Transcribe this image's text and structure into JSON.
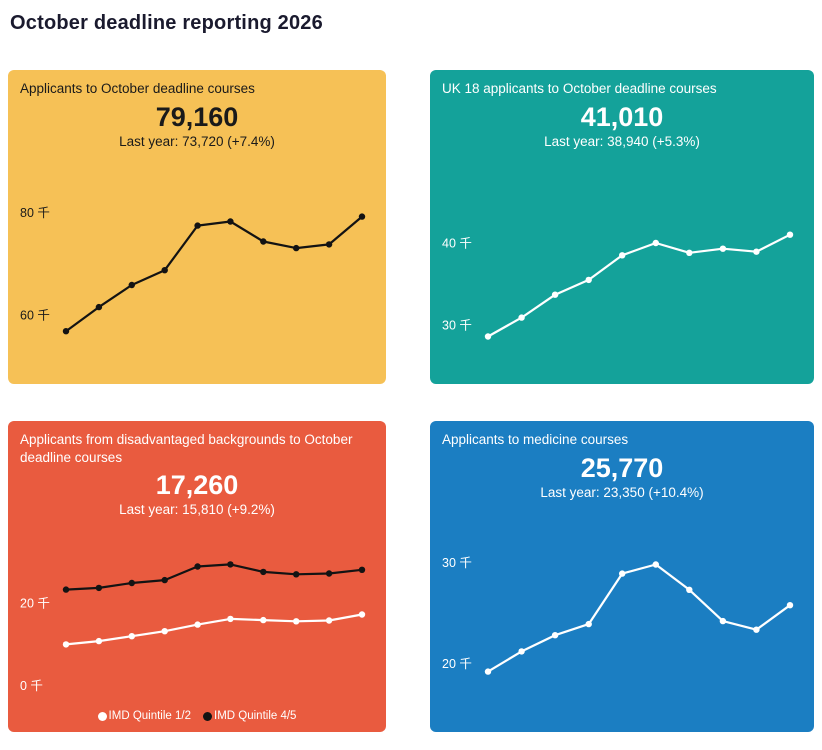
{
  "page_title": "October deadline reporting 2026",
  "cards": [
    {
      "title": "Applicants to October deadline courses",
      "headline": "79,160",
      "last_year": "Last year: 73,720 (+7.4%)",
      "bg": "#F6C156",
      "fg": "#1A1A1A"
    },
    {
      "title": "UK 18 applicants to October deadline courses",
      "headline": "41,010",
      "last_year": "Last year: 38,940 (+5.3%)",
      "bg": "#14A29A",
      "fg": "#FFFFFF"
    },
    {
      "title": "Applicants from disadvantaged backgrounds to October deadline courses",
      "headline": "17,260",
      "last_year": "Last year: 15,810 (+9.2%)",
      "bg": "#E95B3F",
      "fg": "#FFFFFF"
    },
    {
      "title": "Applicants to medicine courses",
      "headline": "25,770",
      "last_year": "Last year: 23,350 (+10.4%)",
      "bg": "#1B7EC2",
      "fg": "#FFFFFF"
    }
  ],
  "chart_data": [
    {
      "type": "line",
      "title": "Applicants to October deadline courses",
      "ylim": [
        50,
        90
      ],
      "tick_color": "#1A1A1A",
      "yticks": [
        {
          "value": 80,
          "label": "80 千"
        },
        {
          "value": 60,
          "label": "60 千"
        }
      ],
      "series": [
        {
          "name": "",
          "color": "#131313",
          "values": [
            56.8,
            61.5,
            65.8,
            68.7,
            77.4,
            78.2,
            74.3,
            73.0,
            73.72,
            79.16
          ]
        }
      ],
      "legend": false
    },
    {
      "type": "line",
      "title": "UK 18 applicants to October deadline courses",
      "ylim": [
        25,
        50
      ],
      "tick_color": "#FFFFFF",
      "yticks": [
        {
          "value": 40,
          "label": "40 千"
        },
        {
          "value": 30,
          "label": "30 千"
        }
      ],
      "series": [
        {
          "name": "",
          "color": "#FFFFFF",
          "values": [
            28.6,
            30.9,
            33.7,
            35.5,
            38.5,
            40.0,
            38.8,
            39.3,
            38.94,
            41.01
          ]
        }
      ],
      "legend": false
    },
    {
      "type": "line",
      "title": "Applicants from disadvantaged backgrounds to October deadline courses",
      "ylim": [
        -3,
        38
      ],
      "tick_color": "#FFFFFF",
      "yticks": [
        {
          "value": 20,
          "label": "20 千"
        },
        {
          "value": 0,
          "label": "0 千"
        }
      ],
      "series": [
        {
          "name": "IMD Quintile 1/2",
          "color": "#FFFFFF",
          "values": [
            10.0,
            10.8,
            12.0,
            13.2,
            14.8,
            16.2,
            15.9,
            15.6,
            15.81,
            17.26
          ]
        },
        {
          "name": "IMD Quintile 4/5",
          "color": "#131313",
          "values": [
            23.3,
            23.7,
            24.9,
            25.6,
            28.9,
            29.4,
            27.6,
            27.0,
            27.2,
            28.1
          ]
        }
      ],
      "legend": true
    },
    {
      "type": "line",
      "title": "Applicants to medicine courses",
      "ylim": [
        15,
        35
      ],
      "tick_color": "#FFFFFF",
      "yticks": [
        {
          "value": 30,
          "label": "30 千"
        },
        {
          "value": 20,
          "label": "20 千"
        }
      ],
      "series": [
        {
          "name": "",
          "color": "#FFFFFF",
          "values": [
            19.2,
            21.2,
            22.8,
            23.9,
            28.9,
            29.8,
            27.3,
            24.2,
            23.35,
            25.77
          ]
        }
      ],
      "legend": false
    }
  ]
}
